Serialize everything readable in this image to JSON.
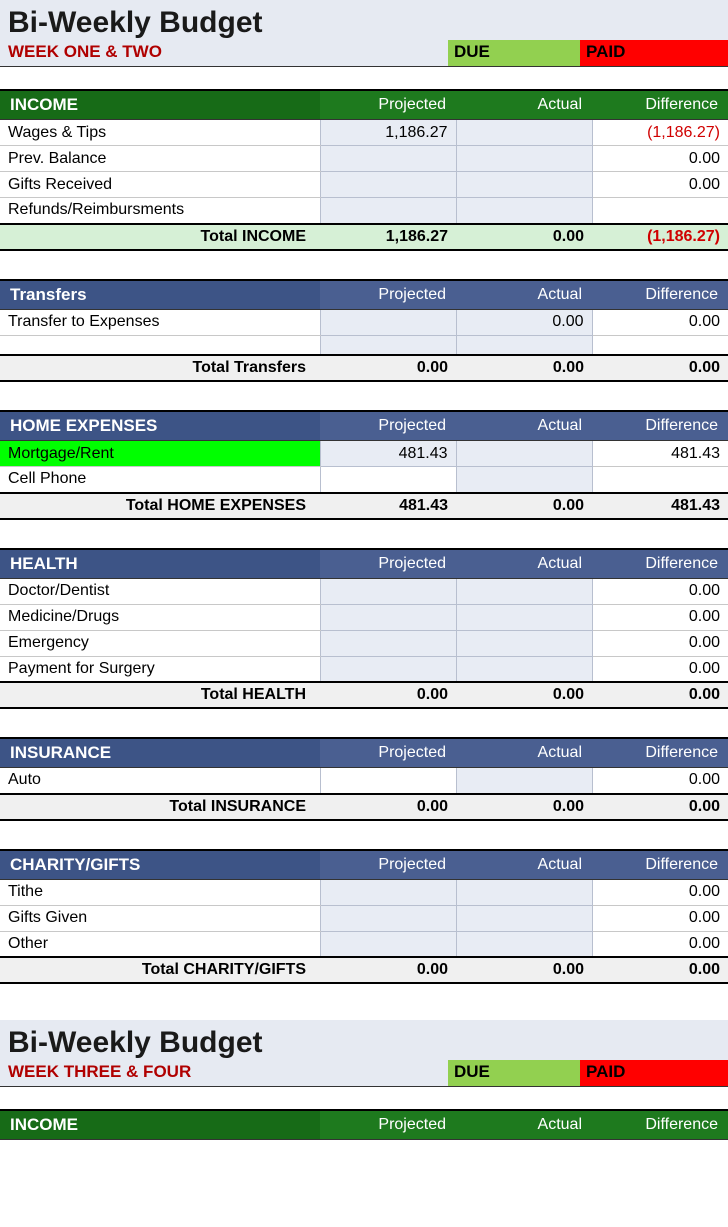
{
  "colors": {
    "title_bg": "#e6eaf2",
    "week_text": "#b00000",
    "due_bg": "#92d050",
    "paid_bg": "#ff0000",
    "green_header": "#1e7a1e",
    "blue_header": "#4a5f91",
    "input_cell_bg": "#e8ecf4",
    "highlight_bg": "#00ff00",
    "total_green_bg": "#d6f0d6",
    "negative_text": "#d00000"
  },
  "title1": "Bi-Weekly Budget",
  "week1": "WEEK ONE & TWO",
  "badge_due": "DUE",
  "badge_paid": "PAID",
  "col_projected": "Projected",
  "col_actual": "Actual",
  "col_difference": "Difference",
  "income": {
    "name": "INCOME",
    "rows": {
      "r0": {
        "label": "Wages & Tips",
        "projected": "1,186.27",
        "actual": "",
        "diff": "(1,186.27)",
        "neg": true
      },
      "r1": {
        "label": "Prev. Balance",
        "projected": "",
        "actual": "",
        "diff": "0.00"
      },
      "r2": {
        "label": "Gifts Received",
        "projected": "",
        "actual": "",
        "diff": "0.00"
      },
      "r3": {
        "label": "Refunds/Reimbursments",
        "projected": "",
        "actual": "",
        "diff": ""
      }
    },
    "total": {
      "label": "Total INCOME",
      "projected": "1,186.27",
      "actual": "0.00",
      "diff": "(1,186.27)",
      "neg": true
    }
  },
  "transfers": {
    "name": "Transfers",
    "rows": {
      "r0": {
        "label": "Transfer to Expenses",
        "projected": "",
        "actual": "0.00",
        "diff": "0.00"
      }
    },
    "total": {
      "label": "Total Transfers",
      "projected": "0.00",
      "actual": "0.00",
      "diff": "0.00"
    }
  },
  "home": {
    "name": "HOME EXPENSES",
    "rows": {
      "r0": {
        "label": "Mortgage/Rent",
        "projected": "481.43",
        "actual": "",
        "diff": "481.43"
      },
      "r1": {
        "label": "Cell Phone",
        "projected": "",
        "actual": "",
        "diff": ""
      }
    },
    "total": {
      "label": "Total HOME EXPENSES",
      "projected": "481.43",
      "actual": "0.00",
      "diff": "481.43"
    }
  },
  "health": {
    "name": "HEALTH",
    "rows": {
      "r0": {
        "label": "Doctor/Dentist",
        "projected": "",
        "actual": "",
        "diff": "0.00"
      },
      "r1": {
        "label": "Medicine/Drugs",
        "projected": "",
        "actual": "",
        "diff": "0.00"
      },
      "r2": {
        "label": "Emergency",
        "projected": "",
        "actual": "",
        "diff": "0.00"
      },
      "r3": {
        "label": "Payment for Surgery",
        "projected": "",
        "actual": "",
        "diff": "0.00"
      }
    },
    "total": {
      "label": "Total HEALTH",
      "projected": "0.00",
      "actual": "0.00",
      "diff": "0.00"
    }
  },
  "insurance": {
    "name": "INSURANCE",
    "rows": {
      "r0": {
        "label": "Auto",
        "projected": "",
        "actual": "",
        "diff": "0.00"
      }
    },
    "total": {
      "label": "Total INSURANCE",
      "projected": "0.00",
      "actual": "0.00",
      "diff": "0.00"
    }
  },
  "charity": {
    "name": "CHARITY/GIFTS",
    "rows": {
      "r0": {
        "label": "Tithe",
        "projected": "",
        "actual": "",
        "diff": "0.00"
      },
      "r1": {
        "label": "Gifts Given",
        "projected": "",
        "actual": "",
        "diff": "0.00"
      },
      "r2": {
        "label": "Other",
        "projected": "",
        "actual": "",
        "diff": "0.00"
      }
    },
    "total": {
      "label": "Total CHARITY/GIFTS",
      "projected": "0.00",
      "actual": "0.00",
      "diff": "0.00"
    }
  },
  "title2": "Bi-Weekly Budget",
  "week2": "WEEK THREE & FOUR",
  "income2": {
    "name": "INCOME"
  }
}
